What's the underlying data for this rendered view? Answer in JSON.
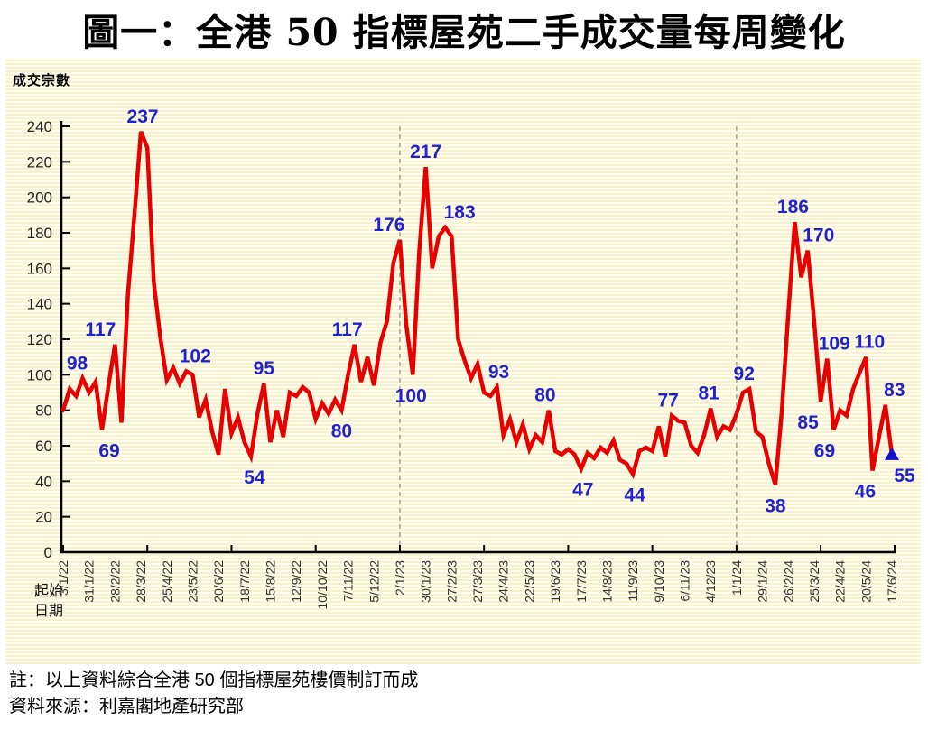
{
  "title": "圖一：全港 50 指標屋苑二手成交量每周變化",
  "notes": {
    "line1": "註：以上資料綜合全港 50 個指標屋苑樓價制訂而成",
    "line2": "資料來源：利嘉閣地產研究部"
  },
  "chart_data": {
    "type": "line",
    "title": "圖一：全港 50 指標屋苑二手成交量每周變化",
    "ylabel": "成交宗數",
    "xlabel": "起始日期",
    "xlabel_lines": [
      "起始",
      "日期"
    ],
    "ylim": [
      0,
      240
    ],
    "ytick_step": 20,
    "grid": "off",
    "legend": "none",
    "series_color": "#E80000",
    "annotation_color": "#2222CC",
    "marker_color": "#1111CC",
    "axis_color": "#000000",
    "dashed_line_color": "#9C9C94",
    "xtick_label_every": 4,
    "dashed_gridline_dates": [
      "2/1/23",
      "1/1/24"
    ],
    "last_point_marker": "triangle-up",
    "x": [
      "3/1/22",
      "10/1/22",
      "17/1/22",
      "24/1/22",
      "31/1/22",
      "7/2/22",
      "14/2/22",
      "21/2/22",
      "28/2/22",
      "7/3/22",
      "14/3/22",
      "21/3/22",
      "28/3/22",
      "4/4/22",
      "11/4/22",
      "18/4/22",
      "25/4/22",
      "2/5/22",
      "9/5/22",
      "16/5/22",
      "23/5/22",
      "30/5/22",
      "6/6/22",
      "13/6/22",
      "20/6/22",
      "27/6/22",
      "4/7/22",
      "11/7/22",
      "18/7/22",
      "25/7/22",
      "1/8/22",
      "8/8/22",
      "15/8/22",
      "22/8/22",
      "29/8/22",
      "5/9/22",
      "12/9/22",
      "19/9/22",
      "26/9/22",
      "3/10/22",
      "10/10/22",
      "17/10/22",
      "24/10/22",
      "31/10/22",
      "7/11/22",
      "14/11/22",
      "21/11/22",
      "28/11/22",
      "5/12/22",
      "12/12/22",
      "19/12/22",
      "26/12/22",
      "2/1/23",
      "9/1/23",
      "16/1/23",
      "23/1/23",
      "30/1/23",
      "6/2/23",
      "13/2/23",
      "20/2/23",
      "27/2/23",
      "6/3/23",
      "13/3/23",
      "20/3/23",
      "27/3/23",
      "3/4/23",
      "10/4/23",
      "17/4/23",
      "24/4/23",
      "1/5/23",
      "8/5/23",
      "15/5/23",
      "22/5/23",
      "29/5/23",
      "5/6/23",
      "12/6/23",
      "19/6/23",
      "26/6/23",
      "3/7/23",
      "10/7/23",
      "17/7/23",
      "24/7/23",
      "31/7/23",
      "7/8/23",
      "14/8/23",
      "21/8/23",
      "28/8/23",
      "4/9/23",
      "11/9/23",
      "18/9/23",
      "25/9/23",
      "2/10/23",
      "9/10/23",
      "16/10/23",
      "23/10/23",
      "30/10/23",
      "6/11/23",
      "13/11/23",
      "20/11/23",
      "27/11/23",
      "4/12/23",
      "11/12/23",
      "18/12/23",
      "25/12/23",
      "1/1/24",
      "8/1/24",
      "15/1/24",
      "22/1/24",
      "29/1/24",
      "5/2/24",
      "12/2/24",
      "19/2/24",
      "26/2/24",
      "4/3/24",
      "11/3/24",
      "18/3/24",
      "25/3/24",
      "1/4/24",
      "8/4/24",
      "15/4/24",
      "22/4/24",
      "29/4/24",
      "6/5/24",
      "13/5/24",
      "20/5/24",
      "27/5/24",
      "3/6/24",
      "10/6/24",
      "17/6/24"
    ],
    "values": [
      80,
      92,
      88,
      98,
      90,
      96,
      69,
      94,
      117,
      73,
      145,
      190,
      237,
      228,
      152,
      121,
      97,
      104,
      95,
      102,
      100,
      76,
      86,
      68,
      55,
      92,
      67,
      76,
      62,
      54,
      78,
      95,
      62,
      80,
      65,
      90,
      88,
      93,
      90,
      75,
      84,
      78,
      86,
      80,
      100,
      117,
      96,
      110,
      94,
      118,
      130,
      163,
      176,
      128,
      100,
      170,
      217,
      160,
      178,
      183,
      178,
      120,
      108,
      98,
      106,
      90,
      88,
      93,
      66,
      75,
      62,
      72,
      58,
      66,
      62,
      80,
      57,
      55,
      58,
      55,
      47,
      56,
      53,
      59,
      56,
      63,
      52,
      50,
      44,
      57,
      59,
      57,
      71,
      54,
      77,
      74,
      73,
      60,
      56,
      66,
      81,
      65,
      71,
      69,
      78,
      90,
      92,
      68,
      65,
      50,
      38,
      80,
      135,
      186,
      155,
      170,
      130,
      85,
      109,
      69,
      80,
      77,
      92,
      101,
      110,
      46,
      65,
      83,
      55
    ],
    "annotations": [
      {
        "i": 3,
        "label": "98",
        "pos": "above",
        "dx": -6
      },
      {
        "i": 6,
        "label": "69",
        "pos": "below",
        "dx": 8
      },
      {
        "i": 8,
        "label": "117",
        "pos": "above",
        "dx": -16
      },
      {
        "i": 12,
        "label": "237",
        "pos": "above",
        "dx": 2
      },
      {
        "i": 19,
        "label": "102",
        "pos": "above",
        "dx": 10
      },
      {
        "i": 29,
        "label": "54",
        "pos": "below",
        "dx": 4
      },
      {
        "i": 31,
        "label": "95",
        "pos": "above",
        "dx": 0
      },
      {
        "i": 43,
        "label": "80",
        "pos": "below",
        "dx": 0
      },
      {
        "i": 45,
        "label": "117",
        "pos": "above",
        "dx": -8
      },
      {
        "i": 52,
        "label": "176",
        "pos": "above",
        "dx": -12
      },
      {
        "i": 54,
        "label": "100",
        "pos": "below",
        "dx": -2
      },
      {
        "i": 56,
        "label": "217",
        "pos": "above",
        "dx": 0
      },
      {
        "i": 59,
        "label": "183",
        "pos": "above",
        "dx": 16
      },
      {
        "i": 67,
        "label": "93",
        "pos": "above",
        "dx": 2
      },
      {
        "i": 75,
        "label": "80",
        "pos": "above",
        "dx": -4
      },
      {
        "i": 80,
        "label": "47",
        "pos": "below",
        "dx": 2
      },
      {
        "i": 88,
        "label": "44",
        "pos": "below",
        "dx": 2
      },
      {
        "i": 94,
        "label": "77",
        "pos": "above",
        "dx": -4
      },
      {
        "i": 100,
        "label": "81",
        "pos": "above",
        "dx": -2
      },
      {
        "i": 106,
        "label": "92",
        "pos": "above",
        "dx": -6
      },
      {
        "i": 110,
        "label": "38",
        "pos": "below",
        "dx": 0
      },
      {
        "i": 113,
        "label": "186",
        "pos": "above",
        "dx": -2
      },
      {
        "i": 115,
        "label": "170",
        "pos": "above",
        "dx": 12
      },
      {
        "i": 117,
        "label": "85",
        "pos": "below",
        "dx": -14
      },
      {
        "i": 118,
        "label": "109",
        "pos": "above",
        "dx": 8
      },
      {
        "i": 119,
        "label": "69",
        "pos": "below",
        "dx": -10
      },
      {
        "i": 124,
        "label": "110",
        "pos": "above",
        "dx": 4
      },
      {
        "i": 125,
        "label": "46",
        "pos": "below",
        "dx": -8
      },
      {
        "i": 127,
        "label": "83",
        "pos": "above",
        "dx": 10
      },
      {
        "i": 128,
        "label": "55",
        "pos": "below",
        "dx": 14
      }
    ]
  }
}
